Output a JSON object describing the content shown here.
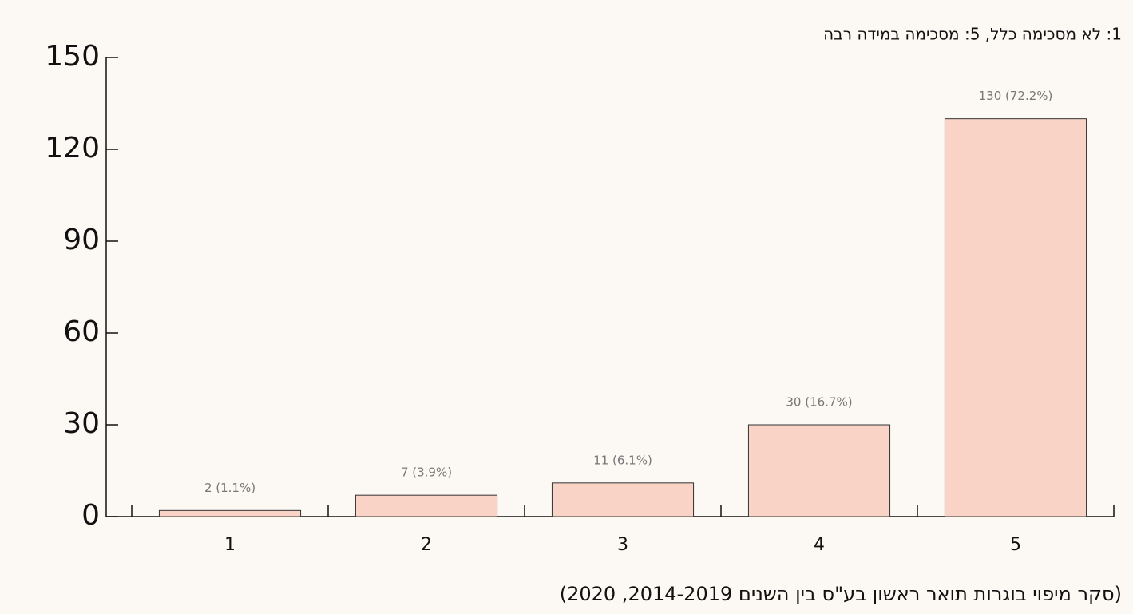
{
  "chart_data": {
    "type": "bar",
    "subtitle": "1: לא מסכימה כלל, 5: מסכימה במידה רבה",
    "source": "(סקר מיפוי בוגרות תואר ראשון בע\"ס בין השנים 2014-2019, 2020)",
    "categories": [
      "1",
      "2",
      "3",
      "4",
      "5"
    ],
    "values": [
      2,
      7,
      11,
      30,
      130
    ],
    "value_labels": [
      "2 (1.1%)",
      "7 (3.9%)",
      "11 (6.1%)",
      "30 (16.7%)",
      "130 (72.2%)"
    ],
    "color": "#f9d3c6",
    "ylim": [
      0,
      150
    ],
    "yticks": [
      0,
      30,
      60,
      90,
      120,
      150
    ],
    "grid": false
  }
}
